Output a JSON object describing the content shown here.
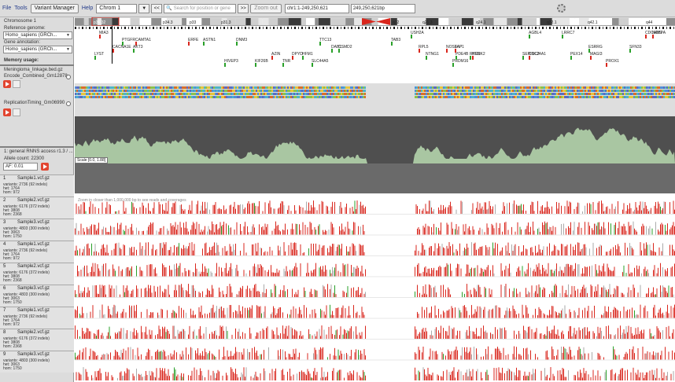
{
  "toolbar": {
    "menus": [
      "File",
      "Tools",
      "Variant Manager",
      "Help"
    ],
    "chrom_select": "Chrom 1",
    "nav_back": "<<",
    "search_placeholder": "Search for position or gene",
    "nav_forward": ">>",
    "zoom_out": "Zoom out",
    "locus": "chr1:1-249,250,621",
    "length": "249,250,621bp"
  },
  "ideogram": {
    "bands": [
      "p36.32",
      "p34.3",
      "p33",
      "p31.3",
      "q12",
      "q21.3",
      "q24.1",
      "q32.1",
      "q42.1",
      "q44"
    ]
  },
  "left": {
    "chromosome_label": "Chromosome 1",
    "ref_label": "Reference genome:",
    "ref_value": "Homo_sapiens (GRCh...",
    "gene_label": "Gene annotation:",
    "gene_value": "Homo_sapiens (GRCh...",
    "memory_label": "Memory usage:",
    "track1_title": "Meningioma_linkage.bed.gz",
    "track1_subtitle": "Encode_Combined_Gm12878",
    "track2_title": "ReplicationTiming_Gm06990",
    "track3_title": "1: general RNNS access r1.3 / ...",
    "allele_label": "Allele count: 22300",
    "af_value": "AF: 0.01",
    "samples": [
      {
        "num": "1",
        "name": "Sample1.vcf.gz",
        "info": [
          "variants: 2736 (92 indels)",
          "het: 1764",
          "hom: 972"
        ]
      },
      {
        "num": "2",
        "name": "Sample2.vcf.gz",
        "info": [
          "variants: 6176 (372 indels)",
          "het: 3808",
          "hom: 2368"
        ]
      },
      {
        "num": "3",
        "name": "Sample3.vcf.gz",
        "info": [
          "variants: 4803 (300 indels)",
          "het: 3063",
          "hom: 1750"
        ]
      },
      {
        "num": "4",
        "name": "Sample1.vcf.gz",
        "info": [
          "variants: 2736 (92 indels)",
          "het: 1764",
          "hom: 972"
        ]
      },
      {
        "num": "5",
        "name": "Sample2.vcf.gz",
        "info": [
          "variants: 6176 (372 indels)",
          "het: 3808",
          "hom: 2368"
        ]
      },
      {
        "num": "6",
        "name": "Sample3.vcf.gz",
        "info": [
          "variants: 4803 (300 indels)",
          "het: 3063",
          "hom: 1750"
        ]
      },
      {
        "num": "7",
        "name": "Sample1.vcf.gz",
        "info": [
          "variants: 2736 (92 indels)",
          "het: 1764",
          "hom: 972"
        ]
      },
      {
        "num": "8",
        "name": "Sample2.vcf.gz",
        "info": [
          "variants: 6176 (372 indels)",
          "het: 3808",
          "hom: 2368"
        ]
      },
      {
        "num": "9",
        "name": "Sample3.vcf.gz",
        "info": [
          "variants: 4803 (300 indels)",
          "het: 3063",
          "hom: 1750"
        ]
      }
    ]
  },
  "genes": [
    "PRDM16",
    "CAMTA1",
    "ERFE",
    "AZIN",
    "SFN33",
    "CSMD2",
    "HIVEP3",
    "AGBL4",
    "DAB1",
    "PDE4B",
    "LRRC7",
    "SLC44A5",
    "COL24A1",
    "DPYD",
    "NTNG1",
    "MAGI3",
    "NOS1AP",
    "DNM3",
    "ASTN1",
    "ESRRG",
    "KCNK2",
    "LYST",
    "TNR",
    "CACNA1E",
    "USH2A",
    "KIF26B",
    "RYR2",
    "AKT3",
    "NAV1",
    "SERINC2",
    "PEX14",
    "FAF1",
    "RPL5",
    "PTGFR",
    "TAB3",
    "HFM1",
    "MIA3",
    "PROX1",
    "TTC13",
    "CDC42BPA"
  ],
  "tracks": {
    "reptime_scale": "Scale [0.0, 1.88]",
    "zoom_hint": "Zoom in closer than 1,000,000 bp to see reads and coverages"
  },
  "colors": {
    "variant_red": "#d9261c",
    "variant_green": "#2aa02a",
    "reptime_fill": "#a9c6a2",
    "reptime_bg": "#4f4f4f",
    "centromere": "#d9261c"
  }
}
